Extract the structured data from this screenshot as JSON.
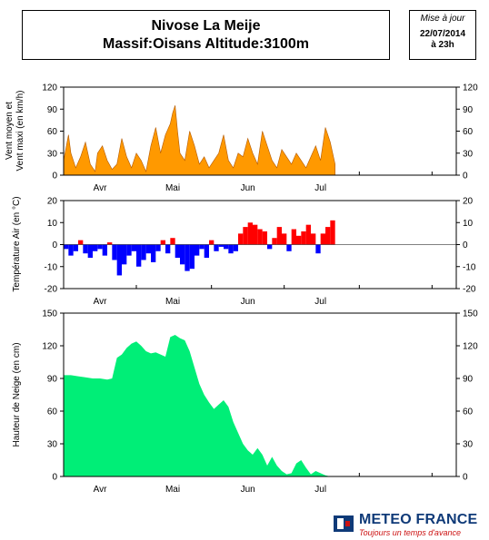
{
  "header": {
    "title_line1": "Nivose La Meije",
    "title_line2": "Massif:Oisans Altitude:3100m",
    "update_label": "Mise à jour",
    "update_date": "22/07/2014",
    "update_time": "à 23h"
  },
  "brand": {
    "name": "METEO FRANCE",
    "tagline": "Toujours un temps d'avance"
  },
  "colors": {
    "wind_fill": "#ff9900",
    "wind_line": "#b35900",
    "temp_pos": "#ff0000",
    "temp_neg": "#0000ff",
    "snow": "#00ee77"
  },
  "chart_data": [
    {
      "type": "area",
      "name": "wind",
      "ylabel_lines": [
        "Vent moyen et",
        "Vent maxi (en km/h)"
      ],
      "ylim": [
        0,
        120
      ],
      "yticks": [
        0,
        30,
        60,
        90,
        120
      ],
      "xlim_days": [
        0,
        162
      ],
      "months": [
        {
          "label": "Avr",
          "day": 15
        },
        {
          "label": "Mai",
          "day": 45
        },
        {
          "label": "Jun",
          "day": 76
        },
        {
          "label": "Jul",
          "day": 106
        }
      ],
      "month_bounds": [
        30,
        61,
        91,
        122,
        152
      ],
      "x": [
        0,
        2,
        3,
        5,
        7,
        9,
        11,
        13,
        14,
        16,
        18,
        20,
        22,
        24,
        26,
        28,
        30,
        32,
        34,
        36,
        38,
        40,
        42,
        44,
        45,
        46,
        47,
        48,
        50,
        52,
        54,
        56,
        58,
        60,
        62,
        64,
        66,
        68,
        70,
        72,
        74,
        76,
        78,
        80,
        82,
        84,
        86,
        88,
        90,
        92,
        94,
        96,
        98,
        100,
        102,
        104,
        106,
        108,
        110,
        112
      ],
      "values": [
        20,
        55,
        30,
        10,
        25,
        45,
        15,
        5,
        30,
        40,
        20,
        8,
        15,
        50,
        25,
        10,
        30,
        20,
        5,
        40,
        65,
        30,
        55,
        70,
        85,
        95,
        60,
        30,
        20,
        60,
        40,
        15,
        25,
        10,
        20,
        30,
        55,
        20,
        10,
        30,
        25,
        50,
        30,
        15,
        60,
        40,
        20,
        10,
        35,
        25,
        15,
        30,
        20,
        10,
        25,
        40,
        20,
        65,
        45,
        15
      ]
    },
    {
      "type": "area",
      "name": "temperature",
      "ylabel_lines": [
        "Température Air (en °C)"
      ],
      "ylim": [
        -20,
        20
      ],
      "yticks": [
        -20,
        -10,
        0,
        10,
        20
      ],
      "xlim_days": [
        0,
        162
      ],
      "months": [
        {
          "label": "Avr",
          "day": 15
        },
        {
          "label": "Mai",
          "day": 45
        },
        {
          "label": "Jun",
          "day": 76
        },
        {
          "label": "Jul",
          "day": 106
        }
      ],
      "month_bounds": [
        30,
        61,
        91,
        122,
        152
      ],
      "x": [
        0,
        2,
        4,
        6,
        8,
        10,
        12,
        14,
        16,
        18,
        20,
        22,
        24,
        26,
        28,
        30,
        32,
        34,
        36,
        38,
        40,
        42,
        44,
        46,
        48,
        50,
        52,
        54,
        56,
        58,
        60,
        62,
        64,
        66,
        68,
        70,
        72,
        74,
        76,
        78,
        80,
        82,
        84,
        86,
        88,
        90,
        92,
        94,
        96,
        98,
        100,
        102,
        104,
        106,
        108,
        110,
        112
      ],
      "values": [
        -2,
        -5,
        -3,
        2,
        -4,
        -6,
        -3,
        -2,
        -5,
        1,
        -7,
        -14,
        -9,
        -5,
        -3,
        -10,
        -7,
        -4,
        -8,
        -3,
        2,
        -4,
        3,
        -6,
        -9,
        -12,
        -11,
        -5,
        -2,
        -6,
        2,
        -3,
        -1,
        -2,
        -4,
        -3,
        5,
        8,
        10,
        9,
        7,
        6,
        -2,
        3,
        8,
        5,
        -3,
        7,
        4,
        6,
        9,
        5,
        -4,
        5,
        8,
        11,
        3
      ]
    },
    {
      "type": "area",
      "name": "snow",
      "ylabel_lines": [
        "Hauteur de Neige (en cm)"
      ],
      "ylim": [
        0,
        150
      ],
      "yticks": [
        0,
        30,
        60,
        90,
        120,
        150
      ],
      "xlim_days": [
        0,
        162
      ],
      "months": [
        {
          "label": "Avr",
          "day": 15
        },
        {
          "label": "Mai",
          "day": 45
        },
        {
          "label": "Jun",
          "day": 76
        },
        {
          "label": "Jul",
          "day": 106
        }
      ],
      "month_bounds": [
        30,
        61,
        91,
        122,
        152
      ],
      "x": [
        0,
        3,
        6,
        9,
        12,
        15,
        18,
        20,
        22,
        24,
        26,
        28,
        30,
        32,
        34,
        36,
        38,
        40,
        42,
        44,
        46,
        48,
        50,
        52,
        54,
        56,
        58,
        60,
        62,
        64,
        66,
        68,
        70,
        72,
        74,
        76,
        78,
        80,
        82,
        84,
        86,
        88,
        90,
        92,
        94,
        96,
        98,
        100,
        102,
        104,
        106,
        108,
        110
      ],
      "values": [
        93,
        93,
        92,
        91,
        90,
        90,
        89,
        90,
        109,
        112,
        118,
        122,
        124,
        120,
        115,
        113,
        114,
        112,
        110,
        128,
        130,
        127,
        125,
        115,
        100,
        85,
        75,
        68,
        62,
        66,
        70,
        64,
        50,
        40,
        30,
        24,
        20,
        26,
        20,
        10,
        18,
        10,
        5,
        2,
        3,
        12,
        15,
        8,
        2,
        5,
        3,
        1,
        0
      ]
    }
  ]
}
